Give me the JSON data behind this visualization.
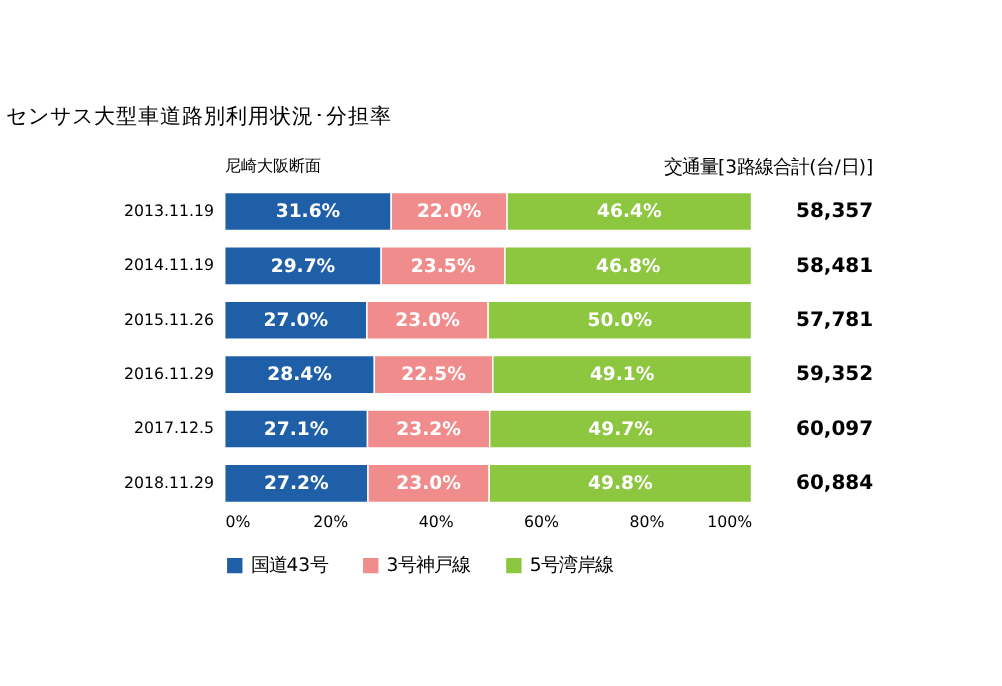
{
  "chart_data": {
    "type": "bar",
    "orientation": "horizontal",
    "stacked": true,
    "title": "センサス大型車道路別利用状況･分担率",
    "categories": [
      "2013.11.19",
      "2014.11.19",
      "2015.11.26",
      "2016.11.29",
      "2017.12.5",
      "2018.11.29"
    ],
    "series": [
      {
        "name": "国道43号",
        "color": "#1f5fa8",
        "values": [
          31.6,
          29.7,
          27.0,
          28.4,
          27.1,
          27.2
        ],
        "value_labels": [
          "31.6%",
          "29.7%",
          "27.0%",
          "28.4%",
          "27.1%",
          "27.2%"
        ]
      },
      {
        "name": "3号神戸線",
        "color": "#f08c8c",
        "values": [
          22.0,
          23.5,
          23.0,
          22.5,
          23.2,
          23.0
        ],
        "value_labels": [
          "22.0%",
          "23.5%",
          "23.0%",
          "22.5%",
          "23.2%",
          "23.0%"
        ]
      },
      {
        "name": "5号湾岸線",
        "color": "#8dc63f",
        "values": [
          46.4,
          46.8,
          50.0,
          49.1,
          49.7,
          49.8
        ],
        "value_labels": [
          "46.4%",
          "46.8%",
          "50.0%",
          "49.1%",
          "49.7%",
          "49.8%"
        ]
      }
    ],
    "annotations": [
      "尼崎大阪断面",
      "交通量[3路線合計(台/日)]",
      "58,357",
      "58,481",
      "57,781",
      "59,352",
      "60,097",
      "60,884"
    ],
    "xlim": [
      0,
      100
    ],
    "xticks": [
      {
        "value": 0,
        "label": "0%"
      },
      {
        "value": 20,
        "label": "20%"
      },
      {
        "value": 40,
        "label": "40%"
      },
      {
        "value": 60,
        "label": "60%"
      },
      {
        "value": 80,
        "label": "80%"
      },
      {
        "value": 100,
        "label": "100%"
      }
    ],
    "grid": false,
    "legend": "bottom"
  }
}
